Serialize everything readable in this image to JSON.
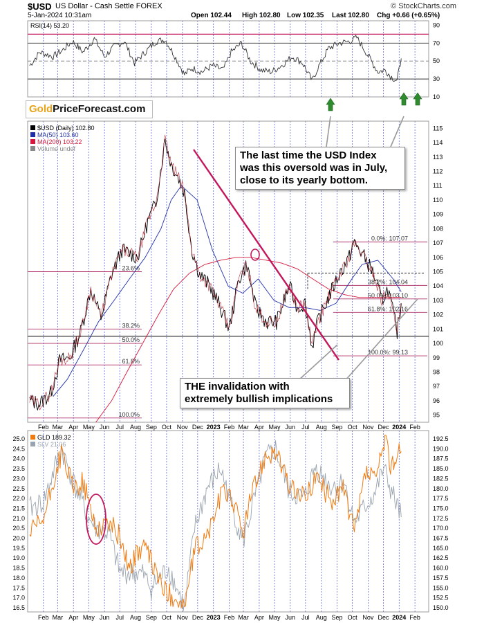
{
  "header": {
    "symbol": "$USD",
    "name": "US Dollar - Cash Settle FOREX",
    "brand": "© StockCharts.com",
    "date": "5-Jan-2024 10:31am",
    "open": "Open 102.44",
    "high": "High 102.80",
    "low": "Low 102.35",
    "last": "Last 102.80",
    "chg": "Chg +0.66 (+0.65%)"
  },
  "logo": {
    "gold": "Gold",
    "rest": "PriceForecast.com"
  },
  "callouts": {
    "oversold": [
      "The last time the USD Index",
      "was this oversold was in July,",
      "close to its yearly bottom."
    ],
    "invalidation": [
      "THE invalidation with",
      "extremely bullish implications"
    ]
  },
  "chart_data": [
    {
      "type": "line",
      "panel": "rsi",
      "title": "RSI(14) 53.20",
      "y_ticks": [
        90,
        70,
        50,
        30,
        10
      ],
      "ylim": [
        10,
        95
      ],
      "reference_lines": [
        80,
        70,
        50,
        30
      ],
      "colors": {
        "line": "#333333",
        "overbought": "#c2185b",
        "arrows": "#2e8b2e"
      },
      "x": [
        "2022-01-05",
        "2022-01-25",
        "2022-02-20",
        "2022-03-10",
        "2022-03-30",
        "2022-04-20",
        "2022-05-12",
        "2022-06-01",
        "2022-06-20",
        "2022-07-10",
        "2022-07-30",
        "2022-08-20",
        "2022-09-10",
        "2022-09-28",
        "2022-10-15",
        "2022-11-05",
        "2022-11-20",
        "2022-12-10",
        "2022-12-30",
        "2023-01-20",
        "2023-02-05",
        "2023-02-25",
        "2023-03-15",
        "2023-04-05",
        "2023-04-25",
        "2023-05-15",
        "2023-06-05",
        "2023-06-25",
        "2023-07-14",
        "2023-07-25",
        "2023-08-15",
        "2023-09-05",
        "2023-09-25",
        "2023-10-10",
        "2023-10-30",
        "2023-11-20",
        "2023-12-05",
        "2023-12-15",
        "2023-12-28",
        "2024-01-05"
      ],
      "values": [
        45,
        60,
        55,
        62,
        72,
        60,
        75,
        55,
        66,
        72,
        48,
        60,
        72,
        74,
        58,
        35,
        42,
        38,
        45,
        40,
        60,
        70,
        50,
        40,
        38,
        45,
        55,
        48,
        28,
        42,
        64,
        70,
        72,
        76,
        58,
        38,
        40,
        33,
        28,
        53
      ]
    },
    {
      "type": "line",
      "panel": "price",
      "title": "$USD (Daily) 102.80",
      "legend": [
        {
          "name": "$USD (Daily) 102.80",
          "color": "#000000"
        },
        {
          "name": "MA(50) 103.60",
          "color": "#1f2fa8"
        },
        {
          "name": "MA(200) 103.22",
          "color": "#d6183c"
        },
        {
          "name": "Volume undef",
          "color": "#888888"
        }
      ],
      "y_ticks": [
        115,
        114,
        113,
        112,
        111,
        110,
        109,
        108,
        107,
        106,
        105,
        104,
        103,
        102,
        101,
        100,
        99,
        98,
        97,
        96,
        95
      ],
      "ylim": [
        94.5,
        115.5
      ],
      "x_ticks": [
        "Feb",
        "Mar",
        "Apr",
        "May",
        "Jun",
        "Jul",
        "Aug",
        "Sep",
        "Oct",
        "Nov",
        "Dec",
        "2023",
        "Feb",
        "Mar",
        "Apr",
        "May",
        "Jun",
        "Jul",
        "Aug",
        "Sep",
        "Oct",
        "Nov",
        "Dec",
        "2024",
        "Feb"
      ],
      "series": [
        {
          "name": "$USD (Daily) 102.80",
          "x": [
            "2022-01-05",
            "2022-01-25",
            "2022-02-15",
            "2022-03-05",
            "2022-03-25",
            "2022-04-15",
            "2022-05-05",
            "2022-05-25",
            "2022-06-15",
            "2022-07-05",
            "2022-07-20",
            "2022-08-05",
            "2022-08-25",
            "2022-09-10",
            "2022-09-28",
            "2022-10-10",
            "2022-10-25",
            "2022-11-05",
            "2022-11-20",
            "2022-12-05",
            "2022-12-25",
            "2023-01-15",
            "2023-02-01",
            "2023-02-20",
            "2023-03-08",
            "2023-03-25",
            "2023-04-15",
            "2023-05-05",
            "2023-05-30",
            "2023-06-15",
            "2023-06-30",
            "2023-07-14",
            "2023-07-25",
            "2023-08-15",
            "2023-09-05",
            "2023-09-25",
            "2023-10-03",
            "2023-10-20",
            "2023-11-10",
            "2023-11-28",
            "2023-12-10",
            "2023-12-28",
            "2024-01-05"
          ],
          "values": [
            96.0,
            95.8,
            96.5,
            98.8,
            99.0,
            100.8,
            103.8,
            101.8,
            104.8,
            106.5,
            106.3,
            106.0,
            108.5,
            109.8,
            114.2,
            112.5,
            111.5,
            110.5,
            106.5,
            104.8,
            104.0,
            102.5,
            101.0,
            104.5,
            105.5,
            102.5,
            101.5,
            101.5,
            104.0,
            102.5,
            102.8,
            99.8,
            101.5,
            103.2,
            104.8,
            106.0,
            107.0,
            106.3,
            105.0,
            103.0,
            103.8,
            100.8,
            102.8
          ]
        },
        {
          "name": "MA(50) 103.60",
          "x": [
            "2022-02-20",
            "2022-03-20",
            "2022-04-20",
            "2022-05-20",
            "2022-06-20",
            "2022-07-20",
            "2022-08-20",
            "2022-09-20",
            "2022-10-10",
            "2022-10-30",
            "2022-11-30",
            "2022-12-30",
            "2023-01-30",
            "2023-02-28",
            "2023-03-30",
            "2023-04-30",
            "2023-05-30",
            "2023-06-30",
            "2023-07-30",
            "2023-08-30",
            "2023-09-30",
            "2023-10-20",
            "2023-11-20",
            "2023-12-20",
            "2024-01-05"
          ],
          "values": [
            96.3,
            97.5,
            99.5,
            101.5,
            103.0,
            104.5,
            106.0,
            108.0,
            110.0,
            111.0,
            110.0,
            106.5,
            104.0,
            103.5,
            104.5,
            103.0,
            102.5,
            102.5,
            102.3,
            102.8,
            104.5,
            105.5,
            105.8,
            104.5,
            103.6
          ]
        },
        {
          "name": "MA(200) 103.22",
          "x": [
            "2022-05-15",
            "2022-06-15",
            "2022-07-15",
            "2022-08-15",
            "2022-09-15",
            "2022-10-15",
            "2022-11-15",
            "2022-12-15",
            "2023-01-15",
            "2023-02-15",
            "2023-03-15",
            "2023-04-15",
            "2023-05-15",
            "2023-06-15",
            "2023-07-15",
            "2023-08-15",
            "2023-09-15",
            "2023-10-15",
            "2023-11-15",
            "2023-12-15",
            "2024-01-05"
          ],
          "values": [
            94.5,
            96.0,
            98.0,
            100.0,
            102.0,
            103.8,
            104.9,
            105.5,
            105.8,
            106.0,
            106.0,
            105.8,
            105.6,
            105.2,
            104.5,
            103.8,
            103.4,
            103.2,
            103.2,
            103.2,
            103.22
          ]
        }
      ],
      "fibonacci_2022": [
        {
          "label": "23.6%",
          "value": 105.0
        },
        {
          "label": "38.2%",
          "value": 101.0
        },
        {
          "label": "50.0%",
          "value": 100.0
        },
        {
          "label": "61.8%",
          "value": 98.5
        },
        {
          "label": "100.0%",
          "value": 94.8
        }
      ],
      "fibonacci_2023": [
        {
          "label": "0.0%: 107.07",
          "value": 107.07
        },
        {
          "label": "38.2%: 104.04",
          "value": 104.04
        },
        {
          "label": "50.0%: 103.10",
          "value": 103.1
        },
        {
          "label": "61.8%: 102.16",
          "value": 102.16
        },
        {
          "label": "100.0%: 99.13",
          "value": 99.13
        }
      ],
      "horizontal_support": 100.5
    },
    {
      "type": "line",
      "panel": "metals",
      "legend": [
        {
          "name": "GLD 189.32",
          "color": "#f07a0f"
        },
        {
          "name": "SLV 21.06",
          "color": "#9aa4ae"
        }
      ],
      "y_ticks_left": [
        25.0,
        24.5,
        24.0,
        23.5,
        23.0,
        22.5,
        22.0,
        21.5,
        21.0,
        20.5,
        20.0,
        19.5,
        19.0,
        18.5,
        18.0,
        17.5,
        17.0,
        16.5
      ],
      "y_ticks_right": [
        192.5,
        190.0,
        187.5,
        185.0,
        182.5,
        180.0,
        177.5,
        175.0,
        172.5,
        170.0,
        167.5,
        165.0,
        162.5,
        160.0,
        157.5,
        155.0,
        152.5,
        150.0
      ],
      "x_ticks": [
        "Feb",
        "Mar",
        "Apr",
        "May",
        "Jun",
        "Jul",
        "Aug",
        "Sep",
        "Oct",
        "Nov",
        "Dec",
        "2023",
        "Feb",
        "Mar",
        "Apr",
        "May",
        "Jun",
        "Jul",
        "Aug",
        "Sep",
        "Oct",
        "Nov",
        "Dec",
        "2024",
        "Feb"
      ],
      "series": [
        {
          "name": "GLD 189.32",
          "x": [
            "2022-01-05",
            "2022-02-01",
            "2022-03-08",
            "2022-04-01",
            "2022-04-20",
            "2022-05-15",
            "2022-06-10",
            "2022-07-01",
            "2022-07-20",
            "2022-08-15",
            "2022-09-01",
            "2022-09-28",
            "2022-10-20",
            "2022-11-05",
            "2022-11-25",
            "2022-12-20",
            "2023-01-15",
            "2023-02-01",
            "2023-02-28",
            "2023-03-15",
            "2023-04-13",
            "2023-05-03",
            "2023-05-30",
            "2023-06-29",
            "2023-07-20",
            "2023-08-20",
            "2023-09-15",
            "2023-10-05",
            "2023-10-27",
            "2023-11-15",
            "2023-12-01",
            "2023-12-04",
            "2023-12-15",
            "2024-01-05"
          ],
          "values": [
            168.5,
            172.0,
            189.0,
            180.0,
            181.5,
            170.0,
            171.5,
            168.0,
            160.0,
            166.0,
            161.5,
            154.0,
            152.5,
            150.0,
            164.5,
            168.0,
            178.0,
            179.5,
            169.0,
            177.5,
            188.5,
            189.5,
            180.5,
            177.5,
            183.0,
            177.0,
            180.0,
            168.5,
            184.0,
            182.0,
            189.5,
            192.5,
            186.0,
            189.32
          ]
        },
        {
          "name": "SLV 21.06",
          "x": [
            "2022-01-05",
            "2022-02-01",
            "2022-03-08",
            "2022-04-01",
            "2022-05-01",
            "2022-05-15",
            "2022-06-10",
            "2022-07-01",
            "2022-08-15",
            "2022-09-01",
            "2022-10-05",
            "2022-11-05",
            "2022-11-25",
            "2022-12-20",
            "2023-01-15",
            "2023-02-28",
            "2023-04-13",
            "2023-05-03",
            "2023-05-30",
            "2023-06-29",
            "2023-07-20",
            "2023-08-20",
            "2023-09-15",
            "2023-10-05",
            "2023-11-15",
            "2023-12-01",
            "2023-12-15",
            "2024-01-05"
          ],
          "values": [
            21.5,
            21.8,
            24.5,
            22.8,
            21.0,
            20.5,
            20.2,
            18.3,
            18.2,
            17.5,
            18.5,
            16.5,
            20.5,
            22.5,
            23.5,
            19.8,
            24.0,
            24.5,
            22.3,
            22.0,
            23.6,
            22.6,
            22.8,
            20.8,
            22.3,
            23.5,
            22.5,
            21.06
          ]
        }
      ]
    }
  ]
}
